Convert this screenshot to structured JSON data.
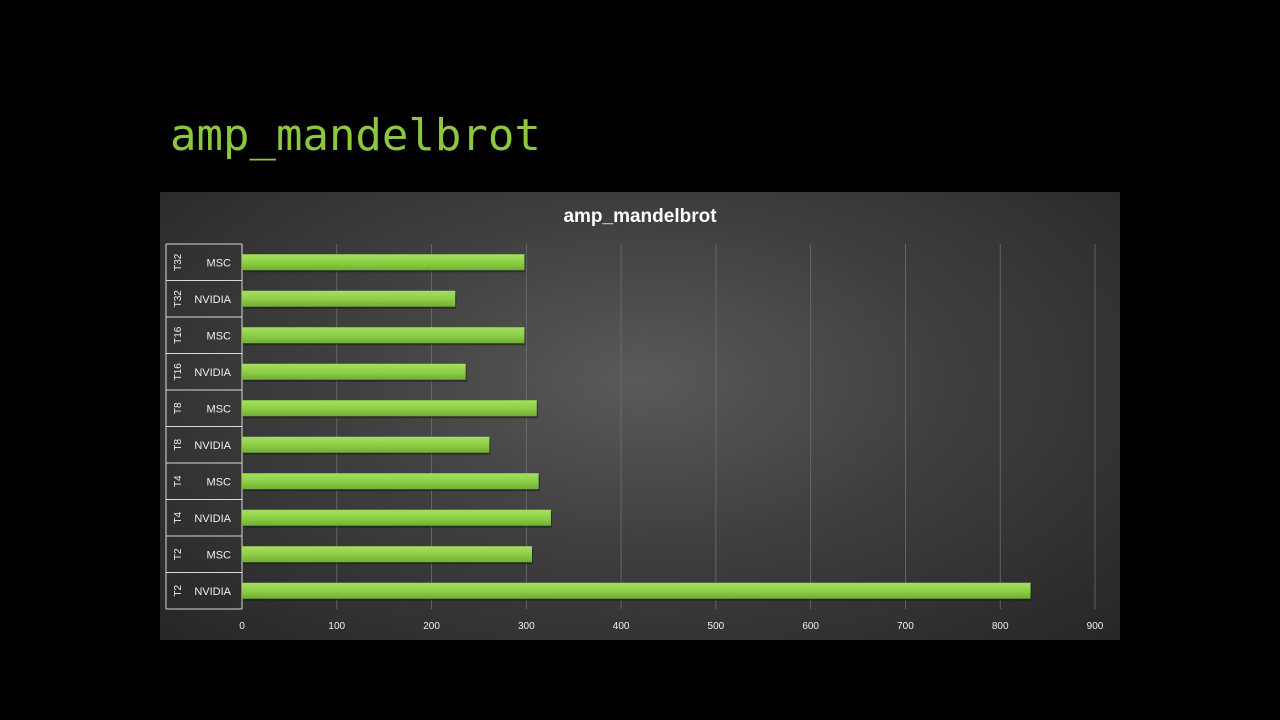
{
  "slide": {
    "title": "amp_mandelbrot"
  },
  "chart_data": {
    "type": "bar",
    "orientation": "horizontal",
    "title": "amp_mandelbrot",
    "xlabel": "",
    "ylabel": "",
    "xlim": [
      0,
      900
    ],
    "xticks": [
      0,
      100,
      200,
      300,
      400,
      500,
      600,
      700,
      800,
      900
    ],
    "grid": true,
    "legend": "none",
    "bar_color": "#8dd44a",
    "categories": [
      {
        "group": "T32",
        "label": "MSC",
        "value": 298
      },
      {
        "group": "T32",
        "label": "NVIDIA",
        "value": 225
      },
      {
        "group": "T16",
        "label": "MSC",
        "value": 298
      },
      {
        "group": "T16",
        "label": "NVIDIA",
        "value": 236
      },
      {
        "group": "T8",
        "label": "MSC",
        "value": 311
      },
      {
        "group": "T8",
        "label": "NVIDIA",
        "value": 261
      },
      {
        "group": "T4",
        "label": "MSC",
        "value": 313
      },
      {
        "group": "T4",
        "label": "NVIDIA",
        "value": 326
      },
      {
        "group": "T2",
        "label": "MSC",
        "value": 306
      },
      {
        "group": "T2",
        "label": "NVIDIA",
        "value": 832
      }
    ]
  }
}
